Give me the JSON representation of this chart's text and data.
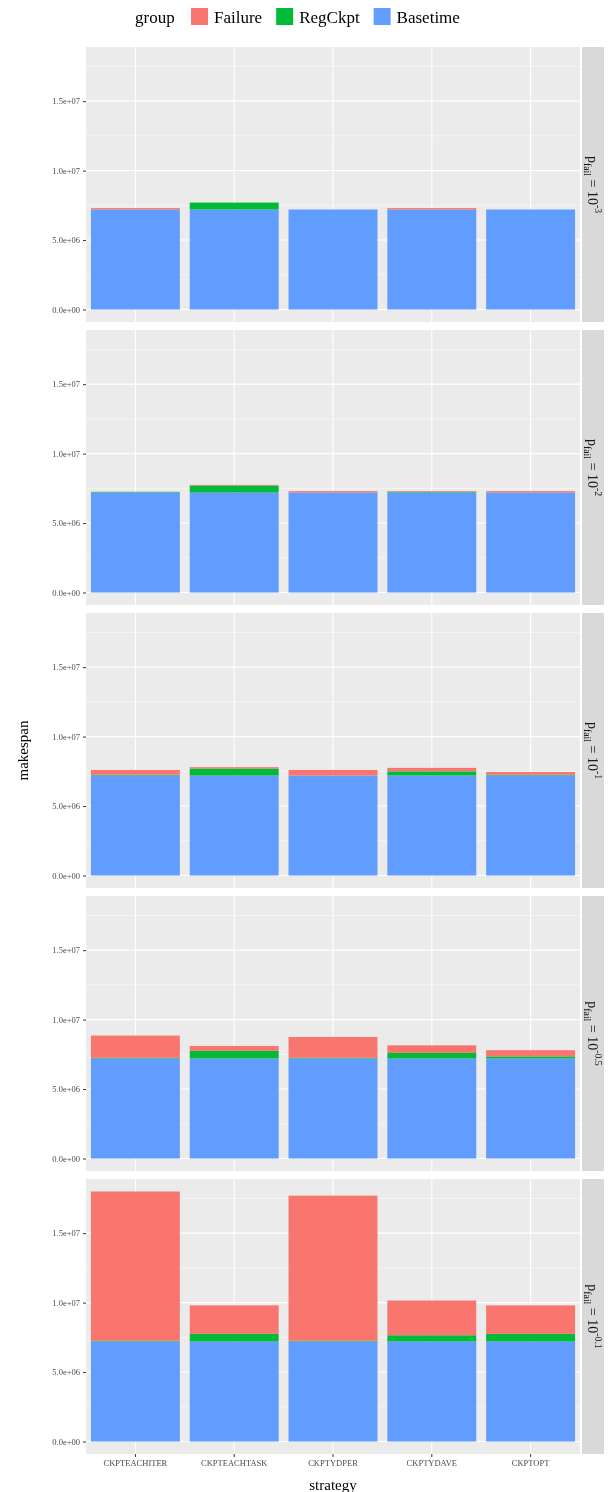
{
  "chart_data": [
    {
      "type": "bar",
      "stacked": true,
      "title": "p$_{fail}$ = 10$^{-3}$",
      "legend_title": "group",
      "legend": "top",
      "grid": true,
      "tick_labels": "y",
      "categories": [
        null,
        null,
        null,
        null,
        null
      ],
      "ylim": [
        -900000,
        18900000
      ],
      "yticks": [
        {
          "value": 0,
          "label": "0.0e+00"
        },
        {
          "value": 5000000,
          "label": "5.0e+06"
        },
        {
          "value": 10000000,
          "label": "1.0e+07"
        },
        {
          "value": 15000000,
          "label": "1.5e+07"
        }
      ],
      "series": [
        {
          "name": "Basetime",
          "color": "#619cff",
          "values": [
            7200000,
            7200000,
            7200000,
            7200000,
            7200000
          ]
        },
        {
          "name": "RegCkpt",
          "color": "#00ba38",
          "values": [
            0,
            500000,
            0,
            0,
            0
          ]
        },
        {
          "name": "Failure",
          "color": "#f8766d",
          "values": [
            100000,
            0,
            0,
            100000,
            0
          ]
        }
      ]
    },
    {
      "type": "bar",
      "stacked": true,
      "title": "p$_{fail}$ = 10$^{-2}$",
      "grid": true,
      "tick_labels": "y",
      "categories": [
        null,
        null,
        null,
        null,
        null
      ],
      "ylim": [
        -900000,
        18900000
      ],
      "yticks": [
        {
          "value": 0,
          "label": "0.0e+00"
        },
        {
          "value": 5000000,
          "label": "5.0e+06"
        },
        {
          "value": 10000000,
          "label": "1.0e+07"
        },
        {
          "value": 15000000,
          "label": "1.5e+07"
        }
      ],
      "series": [
        {
          "color": "#619cff",
          "values": [
            7200000,
            7200000,
            7200000,
            7200000,
            7200000
          ]
        },
        {
          "color": "#00ba38",
          "values": [
            50000,
            500000,
            0,
            50000,
            0
          ]
        },
        {
          "color": "#f8766d",
          "values": [
            0,
            50000,
            100000,
            50000,
            100000
          ]
        }
      ]
    },
    {
      "type": "bar",
      "stacked": true,
      "title": "p$_{fail}$ = 10$^{-1}$",
      "ylabel": "makespan",
      "grid": true,
      "tick_labels": "y",
      "categories": [
        null,
        null,
        null,
        null,
        null
      ],
      "ylim": [
        -900000,
        18900000
      ],
      "yticks": [
        {
          "value": 0,
          "label": "0.0e+00"
        },
        {
          "value": 5000000,
          "label": "5.0e+06"
        },
        {
          "value": 10000000,
          "label": "1.0e+07"
        },
        {
          "value": 15000000,
          "label": "1.5e+07"
        }
      ],
      "series": [
        {
          "color": "#619cff",
          "values": [
            7200000,
            7200000,
            7200000,
            7200000,
            7200000
          ]
        },
        {
          "color": "#00ba38",
          "values": [
            50000,
            500000,
            0,
            300000,
            50000
          ]
        },
        {
          "color": "#f8766d",
          "values": [
            350000,
            100000,
            400000,
            250000,
            200000
          ]
        }
      ]
    },
    {
      "type": "bar",
      "stacked": true,
      "title": "p$_{fail}$ = 10$^{-0.5}$",
      "grid": true,
      "tick_labels": "y",
      "categories": [
        null,
        null,
        null,
        null,
        null
      ],
      "ylim": [
        -900000,
        18900000
      ],
      "yticks": [
        {
          "value": 0,
          "label": "0.0e+00"
        },
        {
          "value": 5000000,
          "label": "5.0e+06"
        },
        {
          "value": 10000000,
          "label": "1.0e+07"
        },
        {
          "value": 15000000,
          "label": "1.5e+07"
        }
      ],
      "series": [
        {
          "color": "#619cff",
          "values": [
            7200000,
            7200000,
            7200000,
            7200000,
            7200000
          ]
        },
        {
          "color": "#00ba38",
          "values": [
            50000,
            550000,
            50000,
            400000,
            150000
          ]
        },
        {
          "color": "#f8766d",
          "values": [
            1600000,
            350000,
            1500000,
            550000,
            450000
          ]
        }
      ]
    },
    {
      "type": "bar",
      "stacked": true,
      "title": "p$_{fail}$ = 10$^{-0.1}$",
      "xlabel": "strategy",
      "grid": true,
      "categories": [
        "CKPTEACHITER",
        "CKPTEACHTASK",
        "CKPTYDPER",
        "CKPTYDAVE",
        "CKPTOPT"
      ],
      "ylim": [
        -900000,
        18900000
      ],
      "yticks": [
        {
          "value": 0,
          "label": "0.0e+00"
        },
        {
          "value": 5000000,
          "label": "5.0e+06"
        },
        {
          "value": 10000000,
          "label": "1.0e+07"
        },
        {
          "value": 15000000,
          "label": "1.5e+07"
        }
      ],
      "series": [
        {
          "color": "#619cff",
          "values": [
            7200000,
            7200000,
            7200000,
            7200000,
            7200000
          ]
        },
        {
          "color": "#00ba38",
          "values": [
            50000,
            550000,
            50000,
            450000,
            550000
          ]
        },
        {
          "color": "#f8766d",
          "values": [
            10750000,
            2050000,
            10450000,
            2500000,
            2050000
          ]
        }
      ]
    }
  ]
}
